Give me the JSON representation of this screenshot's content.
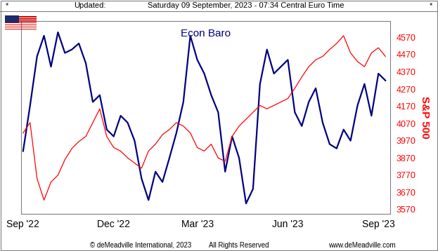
{
  "header": {
    "left_mark": "*",
    "updated": "Updated:",
    "timestamp": "Saturday 09 September, 2023 - 07:34 Central Euro Time",
    "right_mark": "*"
  },
  "footer": {
    "copyright": "© deMeadville International, 2023",
    "rights": "All Rights Reserved",
    "website": "www.deMeadville.com"
  },
  "chart_data": {
    "type": "line",
    "title": "Econ Baro",
    "y_label": "S&P 500",
    "categories": [
      "Sep '22",
      null,
      null,
      null,
      null,
      null,
      null,
      null,
      null,
      null,
      null,
      null,
      null,
      "Dec '22",
      null,
      null,
      null,
      null,
      null,
      null,
      null,
      null,
      null,
      null,
      null,
      "Mar '23",
      null,
      null,
      null,
      null,
      null,
      null,
      null,
      null,
      null,
      null,
      null,
      null,
      "Jun '23",
      null,
      null,
      null,
      null,
      null,
      null,
      null,
      null,
      null,
      null,
      null,
      null,
      "Sep '23",
      null
    ],
    "series": [
      {
        "name": "Econ Baro",
        "color": "#000080",
        "values": [
          3910,
          4175,
          4460,
          4580,
          4400,
          4600,
          4480,
          4500,
          4535,
          4420,
          4195,
          4235,
          4035,
          3995,
          4115,
          4075,
          3970,
          3750,
          3625,
          3790,
          3730,
          3870,
          4015,
          4195,
          4580,
          4440,
          4360,
          4235,
          4135,
          3790,
          3995,
          3870,
          3605,
          3690,
          4300,
          4500,
          4360,
          4400,
          4440,
          4135,
          4055,
          4195,
          4275,
          4075,
          3950,
          3925,
          4035,
          3970,
          4175,
          4300,
          4115,
          4360,
          4320
        ]
      },
      {
        "name": "S&P 500",
        "color": "#ff0000",
        "values": [
          4015,
          4075,
          3750,
          3625,
          3730,
          3770,
          3860,
          3925,
          3965,
          3995,
          4075,
          4155,
          3995,
          3930,
          3910,
          3870,
          3840,
          3810,
          3910,
          3950,
          4005,
          4035,
          4075,
          4055,
          4015,
          3930,
          3910,
          3950,
          3870,
          3850,
          3995,
          4055,
          4095,
          4135,
          4175,
          4155,
          4175,
          4195,
          4215,
          4275,
          4340,
          4400,
          4440,
          4460,
          4500,
          4535,
          4580,
          4480,
          4430,
          4400,
          4480,
          4510,
          4460
        ]
      }
    ],
    "ylim": [
      3545,
      4665
    ],
    "yticks": [
      3570,
      3670,
      3770,
      3870,
      3970,
      4070,
      4170,
      4270,
      4370,
      4470,
      4570
    ],
    "tick_labels": true
  }
}
